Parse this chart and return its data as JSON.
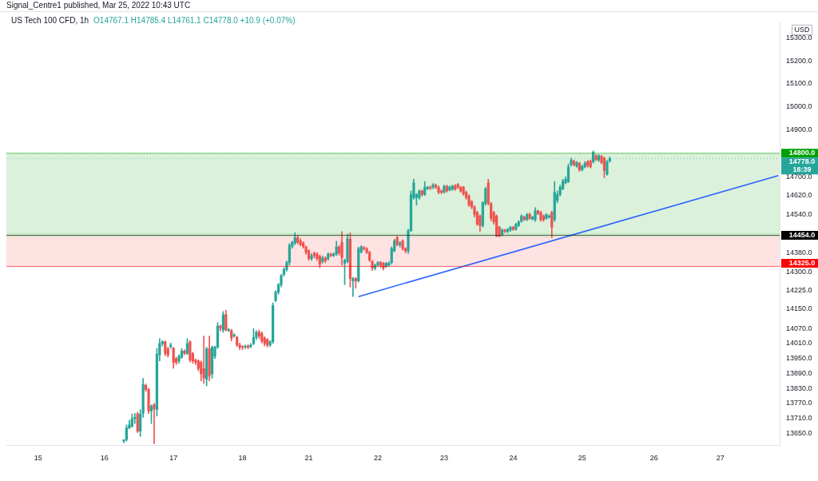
{
  "chart_data": {
    "type": "candlestick",
    "title": "US Tech 100 CFD, 1h",
    "ylabel": "USD",
    "annotations": [
      "Signal_Centre1 published, Mar 25, 2022 10:43 UTC",
      "O14767.1 H14785.4 L14761.1 C14778.0 +10.9 (+0.07%)"
    ],
    "log": true,
    "ylim": [
      13605,
      15368
    ],
    "yticks": [
      {
        "value": 13650,
        "label": "13650.0"
      },
      {
        "value": 13710,
        "label": "13710.0"
      },
      {
        "value": 13770,
        "label": "13770.0"
      },
      {
        "value": 13830,
        "label": "13830.0"
      },
      {
        "value": 13890,
        "label": "13890.0"
      },
      {
        "value": 13950,
        "label": "13950.0"
      },
      {
        "value": 14010,
        "label": "14010.0"
      },
      {
        "value": 14070,
        "label": "14070.0"
      },
      {
        "value": 14150,
        "label": "14150.0"
      },
      {
        "value": 14225,
        "label": "14225.0"
      },
      {
        "value": 14300,
        "label": "14300.0"
      },
      {
        "value": 14380,
        "label": "14380.0"
      },
      {
        "value": 14540,
        "label": "14540.0"
      },
      {
        "value": 14620,
        "label": "14620.0"
      },
      {
        "value": 14700,
        "label": "14700.0"
      },
      {
        "value": 14900,
        "label": "14900.0"
      },
      {
        "value": 15000,
        "label": "15000.0"
      },
      {
        "value": 15100,
        "label": "15100.0"
      },
      {
        "value": 15200,
        "label": "15200.0"
      },
      {
        "value": 15300,
        "label": "15300.0"
      }
    ],
    "categories": [
      null,
      null,
      null,
      null,
      null,
      null,
      null,
      null,
      null,
      null,
      null,
      "15",
      null,
      null,
      null,
      null,
      null,
      null,
      null,
      null,
      null,
      null,
      null,
      null,
      null,
      null,
      null,
      null,
      null,
      null,
      null,
      null,
      null,
      null,
      null,
      "16",
      null,
      null,
      null,
      null,
      null,
      null,
      null,
      null,
      null,
      null,
      null,
      null,
      null,
      null,
      null,
      null,
      null,
      null,
      null,
      null,
      null,
      null,
      null,
      null,
      "17",
      null,
      null,
      null,
      null,
      null,
      null,
      null,
      null,
      null,
      null,
      null,
      null,
      null,
      null,
      null,
      null,
      null,
      null,
      null,
      null,
      null,
      null,
      null,
      null,
      "18",
      null,
      null,
      null,
      null,
      null,
      null,
      null,
      null,
      null,
      null,
      null,
      null,
      null,
      null,
      null,
      null,
      null,
      null,
      null,
      null,
      null,
      null,
      null,
      "21",
      null,
      null,
      null,
      null,
      null,
      null,
      null,
      null,
      null,
      null,
      null,
      null,
      null,
      null,
      null,
      null,
      null,
      null,
      null,
      null,
      null,
      null,
      null,
      null,
      "22",
      null,
      null,
      null,
      null,
      null,
      null,
      null,
      null,
      null,
      null,
      null,
      null,
      null,
      null,
      null,
      null,
      null,
      null,
      null,
      null,
      null,
      null,
      null,
      "23",
      null,
      null,
      null,
      null,
      null,
      null,
      null,
      null,
      null,
      null,
      null,
      null,
      null,
      null,
      null,
      null,
      null,
      null,
      null,
      null,
      null,
      null,
      null,
      null,
      "24",
      null,
      null,
      null,
      null,
      null,
      null,
      null,
      null,
      null,
      null,
      null,
      null,
      null,
      null,
      null,
      null,
      null,
      null,
      null,
      null,
      null,
      null,
      null,
      null,
      "25",
      null,
      null,
      null,
      null,
      null,
      null,
      null,
      null,
      null,
      null,
      null,
      null,
      null,
      null,
      null,
      null,
      null,
      null,
      null,
      null,
      null,
      null,
      null,
      null,
      null,
      "26",
      null,
      null,
      null,
      null,
      null,
      null,
      null,
      null,
      null,
      null,
      null,
      null,
      null,
      null,
      null,
      null,
      null,
      null,
      null,
      null,
      null,
      null,
      null,
      "27",
      null,
      null,
      null,
      null,
      null,
      null,
      null,
      null,
      null,
      null,
      null,
      null,
      null,
      null,
      null,
      null,
      null,
      null,
      null,
      null,
      null
    ],
    "colors": [
      null,
      null,
      null,
      null,
      null,
      null,
      null,
      null,
      null,
      null,
      null,
      null,
      null,
      null,
      null,
      null,
      null,
      null,
      null,
      null,
      null,
      null,
      null,
      null,
      null,
      null,
      null,
      null,
      null,
      null,
      null,
      null,
      null,
      null,
      null,
      null,
      null,
      null,
      null,
      null,
      null,
      null,
      "#26a69a",
      "#26a69a",
      "#26a69a",
      "#26a69a",
      "#26a69a",
      "#ef5350",
      "#26a69a",
      "#26a69a",
      "#ef5350",
      "#ef5350",
      "#26a69a",
      "#ef5350",
      "#26a69a",
      "#26a69a",
      "#26a69a",
      "#ef5350",
      "#ef5350",
      "#26a69a",
      "#ef5350",
      "#ef5350",
      "#26a69a",
      "#26a69a",
      "#ef5350",
      "#26a69a",
      "#ef5350",
      "#ef5350",
      "#ef5350",
      "#ef5350",
      "#ef5350",
      "#ef5350",
      "#26a69a",
      "#ef5350",
      "#26a69a",
      "#26a69a",
      "#26a69a",
      "#ef5350",
      "#26a69a",
      "#ef5350",
      "#26a69a",
      "#ef5350",
      "#26a69a",
      "#ef5350",
      "#ef5350",
      "#ef5350",
      "#26a69a",
      "#ef5350",
      "#26a69a",
      "#26a69a",
      "#26a69a",
      "#ef5350",
      "#ef5350",
      "#ef5350",
      "#ef5350",
      "#26a69a",
      "#26a69a",
      "#26a69a",
      "#26a69a",
      "#26a69a",
      "#26a69a",
      "#26a69a",
      "#26a69a",
      "#26a69a",
      "#26a69a",
      "#ef5350",
      "#ef5350",
      "#ef5350",
      "#ef5350",
      "#ef5350",
      "#26a69a",
      "#ef5350",
      "#ef5350",
      "#ef5350",
      "#26a69a",
      "#ef5350",
      "#26a69a",
      "#ef5350",
      "#26a69a",
      "#26a69a",
      "#ef5350",
      "#ef5350",
      "#26a69a",
      "#26a69a",
      "#ef5350",
      "#26a69a",
      "#ef5350",
      "#26a69a",
      "#26a69a",
      "#ef5350",
      "#ef5350",
      "#ef5350",
      "#ef5350",
      "#26a69a",
      "#26a69a",
      "#ef5350",
      "#ef5350",
      "#26a69a",
      "#26a69a",
      "#26a69a",
      "#26a69a",
      "#ef5350",
      "#26a69a",
      "#ef5350",
      "#ef5350",
      "#26a69a",
      "#26a69a",
      "#26a69a",
      "#26a69a",
      "#26a69a",
      "#ef5350",
      "#26a69a",
      "#26a69a",
      "#ef5350",
      "#26a69a",
      "#ef5350",
      "#ef5350",
      "#ef5350",
      "#26a69a",
      "#ef5350",
      "#26a69a",
      "#26a69a",
      "#ef5350",
      "#ef5350",
      "#ef5350",
      "#ef5350",
      "#ef5350",
      "#ef5350",
      "#ef5350",
      "#ef5350",
      "#ef5350",
      "#ef5350",
      "#26a69a",
      "#26a69a",
      "#ef5350",
      "#ef5350",
      "#ef5350",
      "#ef5350",
      "#ef5350",
      "#26a69a",
      "#ef5350",
      "#26a69a",
      "#26a69a",
      "#ef5350",
      "#26a69a",
      "#26a69a",
      "#26a69a",
      "#ef5350",
      "#26a69a",
      "#ef5350",
      "#26a69a",
      "#26a69a",
      "#ef5350",
      "#ef5350",
      "#ef5350",
      "#26a69a",
      "#26a69a",
      "#ef5350",
      "#26a69a",
      "#26a69a",
      "#26a69a",
      "#26a69a",
      "#26a69a",
      "#26a69a",
      "#26a69a",
      "#ef5350",
      "#26a69a",
      "#ef5350",
      "#26a69a",
      "#26a69a",
      "#ef5350",
      "#ef5350",
      "#26a69a",
      "#ef5350",
      "#26a69a",
      "#ef5350",
      "#ef5350",
      "#26a69a",
      "#26a69a",
      null,
      null,
      null,
      null,
      null,
      null,
      null,
      null,
      null,
      null,
      null,
      null,
      null,
      null,
      null,
      null,
      null,
      null,
      null,
      null,
      null,
      null,
      null,
      null,
      null,
      null,
      null,
      null,
      null,
      null,
      null,
      null,
      null,
      null,
      null,
      null,
      null,
      null,
      null,
      null,
      null,
      null,
      null,
      null,
      null,
      null,
      null,
      null,
      null,
      null,
      null,
      null,
      null,
      null,
      null,
      null,
      null,
      null,
      null,
      null,
      null
    ],
    "ohlc": [
      null,
      null,
      null,
      null,
      null,
      null,
      null,
      null,
      null,
      null,
      null,
      null,
      null,
      null,
      null,
      null,
      null,
      null,
      null,
      null,
      null,
      null,
      null,
      null,
      null,
      null,
      null,
      null,
      null,
      null,
      null,
      null,
      null,
      null,
      null,
      null,
      null,
      null,
      null,
      null,
      null,
      null,
      [
        13621,
        13627,
        13615,
        13627
      ],
      [
        13627,
        13685,
        13621,
        13673
      ],
      [
        13673,
        13703,
        13670,
        13685
      ],
      [
        13679,
        13728,
        13676,
        13710
      ],
      [
        13710,
        13731,
        13690,
        13716
      ],
      [
        13728,
        13735,
        13655,
        13660
      ],
      [
        13660,
        13745,
        13640,
        13728
      ],
      [
        13731,
        13870,
        13715,
        13845
      ],
      [
        13842,
        13848,
        13818,
        13826
      ],
      [
        13826,
        13830,
        13730,
        13740
      ],
      [
        13740,
        13765,
        13690,
        13759
      ],
      [
        13765,
        13770,
        13611,
        13749
      ],
      [
        13746,
        13990,
        13720,
        13967
      ],
      [
        13964,
        14030,
        13940,
        14010
      ],
      [
        14010,
        14022,
        14000,
        14017
      ],
      [
        14017,
        14020,
        13960,
        13970
      ],
      [
        13989,
        13995,
        13955,
        13964
      ],
      [
        13998,
        14012,
        13990,
        14004
      ],
      [
        13992,
        13995,
        13910,
        13934
      ],
      [
        13949,
        13955,
        13925,
        13934
      ],
      [
        13940,
        13965,
        13930,
        13958
      ],
      [
        13955,
        13990,
        13950,
        13980
      ],
      [
        13980,
        13985,
        13965,
        13970
      ],
      [
        13970,
        14030,
        13965,
        14010
      ],
      [
        14017,
        14022,
        13935,
        13943
      ],
      [
        13970,
        13975,
        13930,
        13940
      ],
      [
        13943,
        13948,
        13925,
        13935
      ],
      [
        13940,
        13945,
        13900,
        13909
      ],
      [
        13934,
        13940,
        13860,
        13888
      ],
      [
        13909,
        14040,
        13850,
        13872
      ],
      [
        13866,
        13995,
        13840,
        13989
      ],
      [
        13989,
        14040,
        13860,
        13880
      ],
      [
        13888,
        14000,
        13870,
        13995
      ],
      [
        13958,
        14000,
        13950,
        13995
      ],
      [
        13995,
        14095,
        13990,
        14081
      ],
      [
        14081,
        14085,
        14060,
        14072
      ],
      [
        14065,
        14140,
        14055,
        14127
      ],
      [
        14127,
        14145,
        14060,
        14065
      ],
      [
        14062,
        14072,
        14058,
        14066
      ],
      [
        14062,
        14068,
        14020,
        14032
      ],
      [
        14040,
        14050,
        14035,
        14045
      ],
      [
        14035,
        14040,
        13998,
        14004
      ],
      [
        14004,
        14012,
        13985,
        13995
      ],
      [
        13998,
        14002,
        13985,
        13995
      ],
      [
        13995,
        14005,
        13990,
        13998
      ],
      [
        14000,
        14005,
        13988,
        13995
      ],
      [
        13998,
        14010,
        13992,
        14004
      ],
      [
        14010,
        14070,
        14005,
        14035
      ],
      [
        14035,
        14062,
        14025,
        14056
      ],
      [
        14056,
        14065,
        14030,
        14040
      ],
      [
        14050,
        14058,
        14012,
        14020
      ],
      [
        14032,
        14038,
        14000,
        14010
      ],
      [
        14026,
        14030,
        13995,
        14004
      ],
      [
        14004,
        14022,
        13998,
        14017
      ],
      [
        14017,
        14175,
        14010,
        14164
      ],
      [
        14185,
        14225,
        14180,
        14219
      ],
      [
        14219,
        14255,
        14210,
        14250
      ],
      [
        14250,
        14292,
        14240,
        14287
      ],
      [
        14292,
        14320,
        14285,
        14312
      ],
      [
        14312,
        14348,
        14305,
        14341
      ],
      [
        14341,
        14420,
        14330,
        14412
      ],
      [
        14409,
        14430,
        14400,
        14425
      ],
      [
        14422,
        14465,
        14415,
        14444
      ],
      [
        14444,
        14455,
        14418,
        14425
      ],
      [
        14431,
        14440,
        14410,
        14415
      ],
      [
        14422,
        14428,
        14400,
        14406
      ],
      [
        14406,
        14410,
        14375,
        14383
      ],
      [
        14389,
        14395,
        14350,
        14357
      ],
      [
        14357,
        14378,
        14350,
        14370
      ],
      [
        14380,
        14385,
        14360,
        14370
      ],
      [
        14376,
        14382,
        14350,
        14357
      ],
      [
        14367,
        14372,
        14320,
        14334
      ],
      [
        14345,
        14368,
        14338,
        14360
      ],
      [
        14360,
        14365,
        14340,
        14348
      ],
      [
        14357,
        14382,
        14350,
        14376
      ],
      [
        14376,
        14380,
        14365,
        14370
      ],
      [
        14370,
        14382,
        14365,
        14376
      ],
      [
        14376,
        14430,
        14370,
        14406
      ],
      [
        14406,
        14412,
        14372,
        14380
      ],
      [
        14425,
        14470,
        14330,
        14362
      ],
      [
        14338,
        14355,
        14250,
        14350
      ],
      [
        14345,
        14460,
        14340,
        14440
      ],
      [
        14438,
        14465,
        14240,
        14275
      ],
      [
        14265,
        14280,
        14201,
        14275
      ],
      [
        14275,
        14280,
        14235,
        14265
      ],
      [
        14265,
        14405,
        14260,
        14399
      ],
      [
        14385,
        14412,
        14380,
        14406
      ],
      [
        14403,
        14408,
        14392,
        14398
      ],
      [
        14398,
        14403,
        14378,
        14383
      ],
      [
        14383,
        14388,
        14345,
        14351
      ],
      [
        14345,
        14350,
        14308,
        14318
      ],
      [
        14318,
        14335,
        14310,
        14330
      ],
      [
        14330,
        14346,
        14325,
        14341
      ],
      [
        14341,
        14346,
        14320,
        14330
      ],
      [
        14338,
        14342,
        14310,
        14318
      ],
      [
        14325,
        14342,
        14320,
        14338
      ],
      [
        14330,
        14345,
        14325,
        14338
      ],
      [
        14341,
        14406,
        14335,
        14399
      ],
      [
        14389,
        14438,
        14385,
        14431
      ],
      [
        14444,
        14450,
        14410,
        14415
      ],
      [
        14415,
        14428,
        14405,
        14422
      ],
      [
        14431,
        14436,
        14392,
        14399
      ],
      [
        14399,
        14403,
        14380,
        14389
      ],
      [
        14389,
        14480,
        14378,
        14473
      ],
      [
        14473,
        14640,
        14470,
        14625
      ],
      [
        14612,
        14690,
        14605,
        14674
      ],
      [
        14612,
        14630,
        14580,
        14625
      ],
      [
        14612,
        14645,
        14605,
        14640
      ],
      [
        14640,
        14645,
        14618,
        14625
      ],
      [
        14625,
        14680,
        14620,
        14656
      ],
      [
        14650,
        14660,
        14645,
        14656
      ],
      [
        14656,
        14662,
        14645,
        14652
      ],
      [
        14656,
        14672,
        14650,
        14665
      ],
      [
        14665,
        14670,
        14650,
        14656
      ],
      [
        14656,
        14662,
        14628,
        14634
      ],
      [
        14640,
        14645,
        14628,
        14634
      ],
      [
        14634,
        14665,
        14630,
        14660
      ],
      [
        14660,
        14665,
        14635,
        14640
      ],
      [
        14644,
        14662,
        14640,
        14656
      ],
      [
        14648,
        14665,
        14642,
        14660
      ],
      [
        14662,
        14668,
        14642,
        14648
      ],
      [
        14668,
        14672,
        14650,
        14656
      ],
      [
        14656,
        14660,
        14634,
        14640
      ],
      [
        14656,
        14660,
        14622,
        14628
      ],
      [
        14634,
        14640,
        14605,
        14612
      ],
      [
        14618,
        14625,
        14575,
        14581
      ],
      [
        14594,
        14600,
        14565,
        14572
      ],
      [
        14572,
        14578,
        14530,
        14541
      ],
      [
        14550,
        14555,
        14495,
        14500
      ],
      [
        14535,
        14540,
        14470,
        14494
      ],
      [
        14494,
        14595,
        14488,
        14590
      ],
      [
        14587,
        14655,
        14580,
        14649
      ],
      [
        14674,
        14690,
        14580,
        14587
      ],
      [
        14587,
        14592,
        14515,
        14525
      ],
      [
        14550,
        14555,
        14500,
        14510
      ],
      [
        14535,
        14540,
        14448,
        14451
      ],
      [
        14488,
        14492,
        14448,
        14451
      ],
      [
        14457,
        14482,
        14452,
        14476
      ],
      [
        14476,
        14480,
        14465,
        14470
      ],
      [
        14470,
        14483,
        14465,
        14479
      ],
      [
        14476,
        14492,
        14470,
        14488
      ],
      [
        14488,
        14492,
        14474,
        14479
      ],
      [
        14479,
        14505,
        14475,
        14500
      ],
      [
        14495,
        14515,
        14490,
        14510
      ],
      [
        14512,
        14540,
        14508,
        14535
      ],
      [
        14530,
        14535,
        14515,
        14520
      ],
      [
        14519,
        14546,
        14515,
        14541
      ],
      [
        14541,
        14548,
        14520,
        14525
      ],
      [
        14522,
        14535,
        14518,
        14530
      ],
      [
        14519,
        14570,
        14512,
        14556
      ],
      [
        14556,
        14560,
        14540,
        14545
      ],
      [
        14550,
        14555,
        14512,
        14519
      ],
      [
        14535,
        14540,
        14512,
        14519
      ],
      [
        14525,
        14545,
        14520,
        14540
      ],
      [
        14530,
        14540,
        14525,
        14535
      ],
      [
        14550,
        14555,
        14444,
        14488
      ],
      [
        14519,
        14680,
        14512,
        14634
      ],
      [
        14600,
        14640,
        14590,
        14625
      ],
      [
        14625,
        14665,
        14618,
        14656
      ],
      [
        14649,
        14690,
        14645,
        14680
      ],
      [
        14674,
        14700,
        14670,
        14690
      ],
      [
        14680,
        14755,
        14675,
        14742
      ],
      [
        14752,
        14780,
        14745,
        14770
      ],
      [
        14767,
        14772,
        14745,
        14752
      ],
      [
        14745,
        14766,
        14740,
        14760
      ],
      [
        14758,
        14762,
        14722,
        14730
      ],
      [
        14730,
        14750,
        14725,
        14745
      ],
      [
        14742,
        14765,
        14738,
        14758
      ],
      [
        14764,
        14770,
        14740,
        14748
      ],
      [
        14767,
        14772,
        14738,
        14742
      ],
      [
        14764,
        14810,
        14758,
        14804
      ],
      [
        14789,
        14795,
        14768,
        14773
      ],
      [
        14770,
        14795,
        14765,
        14789
      ],
      [
        14786,
        14792,
        14755,
        14760
      ],
      [
        14780,
        14785,
        14696,
        14727
      ],
      [
        14711,
        14770,
        14706,
        14764
      ],
      [
        14767.1,
        14785.4,
        14761.1,
        14778.0
      ],
      null,
      null,
      null,
      null,
      null,
      null,
      null,
      null,
      null,
      null,
      null,
      null,
      null,
      null,
      null,
      null,
      null,
      null,
      null,
      null,
      null,
      null,
      null,
      null,
      null,
      null,
      null,
      null,
      null,
      null,
      null,
      null,
      null,
      null,
      null,
      null,
      null,
      null,
      null,
      null,
      null,
      null,
      null,
      null,
      null,
      null,
      null,
      null,
      null,
      null,
      null,
      null,
      null,
      null,
      null,
      null,
      null,
      null,
      null,
      null,
      null
    ],
    "series": [
      {
        "type": "line",
        "color": "#2962ff",
        "values": [
          null,
          null,
          null,
          null,
          null,
          null,
          null,
          null,
          null,
          null,
          null,
          null,
          null,
          null,
          null,
          null,
          null,
          null,
          null,
          null,
          null,
          null,
          null,
          null,
          null,
          null,
          null,
          null,
          null,
          null,
          null,
          null,
          null,
          null,
          null,
          null,
          null,
          null,
          null,
          null,
          null,
          null,
          null,
          null,
          null,
          null,
          null,
          null,
          null,
          null,
          null,
          null,
          null,
          null,
          null,
          null,
          null,
          null,
          null,
          null,
          null,
          null,
          null,
          null,
          null,
          null,
          null,
          null,
          null,
          null,
          null,
          null,
          null,
          null,
          null,
          null,
          null,
          null,
          null,
          null,
          null,
          null,
          null,
          null,
          null,
          null,
          null,
          null,
          null,
          null,
          null,
          null,
          null,
          null,
          null,
          null,
          null,
          null,
          null,
          null,
          null,
          null,
          null,
          null,
          null,
          null,
          null,
          null,
          null,
          null,
          null,
          null,
          null,
          null,
          null,
          null,
          null,
          null,
          null,
          null,
          null,
          null,
          null,
          null,
          null,
          null,
          null,
          14201,
          null,
          null,
          null,
          null,
          null,
          null,
          null,
          null,
          null,
          null,
          null,
          null,
          null,
          null,
          null,
          null,
          null,
          null,
          null,
          null,
          null,
          null,
          null,
          null,
          null,
          null,
          null,
          null,
          null,
          null,
          null,
          null,
          null,
          null,
          null,
          null,
          null,
          null,
          null,
          null,
          null,
          null,
          null,
          null,
          null,
          null,
          null,
          null,
          null,
          null,
          null,
          null,
          null,
          null,
          null,
          null,
          null,
          null,
          null,
          null,
          null,
          null,
          null,
          null,
          null,
          null,
          null,
          null,
          null,
          null,
          null,
          null,
          null,
          null,
          null,
          null,
          null,
          null,
          null,
          null,
          null,
          null,
          null,
          null,
          null,
          null,
          null,
          null,
          null,
          null,
          null,
          null,
          null,
          null,
          null,
          null,
          null,
          null,
          null,
          null,
          null,
          null,
          null,
          null,
          null,
          null,
          null,
          null,
          null,
          null,
          null,
          null,
          null,
          null,
          null,
          null,
          null,
          null,
          null,
          null,
          null,
          null,
          null,
          null,
          null,
          null,
          null,
          null,
          null,
          null,
          null,
          null,
          null,
          null,
          null,
          null,
          null,
          null,
          null,
          null,
          null,
          null,
          null,
          null,
          null,
          null,
          null,
          null,
          null,
          null,
          null,
          14705
        ]
      }
    ],
    "bands": [
      {
        "axis": "y",
        "from": 14454,
        "to": 14800,
        "color": "#98d898"
      },
      {
        "axis": "y",
        "from": 14325,
        "to": 14454,
        "color": "#ffb0b0"
      },
      {
        "axis": "y",
        "from": 14444,
        "to": 14463,
        "color": "#a5e0a5"
      }
    ],
    "ref_lines": [
      {
        "axis": "y",
        "value": 14800,
        "label": "14800.0",
        "color": "#00a000",
        "line_style": "solid"
      },
      {
        "axis": "y",
        "value": 14778,
        "label": "14778.0\n16:39",
        "color": "#26a69a",
        "line_style": "dotted"
      },
      {
        "axis": "y",
        "value": 14454,
        "label": "14454.0",
        "color": "#000000",
        "line_style": "solid"
      },
      {
        "axis": "y",
        "value": 14325,
        "label": "14325.0",
        "color": "#ff0000",
        "line_style": "solid"
      }
    ]
  }
}
